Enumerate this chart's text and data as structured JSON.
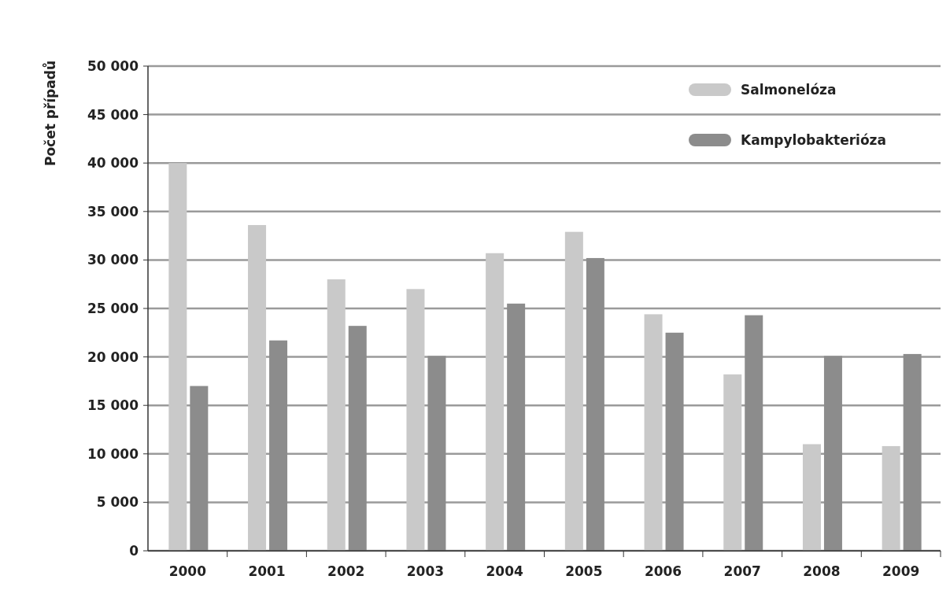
{
  "chart_data": {
    "type": "bar",
    "ylabel": "Počet případů",
    "categories": [
      "2000",
      "2001",
      "2002",
      "2003",
      "2004",
      "2005",
      "2006",
      "2007",
      "2008",
      "2009"
    ],
    "series": [
      {
        "name": "Salmonelóza",
        "color": "#c9c9c9",
        "values": [
          40000,
          33600,
          28000,
          27000,
          30700,
          32900,
          24400,
          18200,
          11000,
          10800
        ]
      },
      {
        "name": "Kampylobakterióza",
        "color": "#8c8c8c",
        "values": [
          17000,
          21700,
          23200,
          20100,
          25500,
          30200,
          22500,
          24300,
          20100,
          20300
        ]
      }
    ],
    "ylim": [
      0,
      50000
    ],
    "yticks": [
      0,
      {
        "value": 5000,
        "label": "5 000"
      },
      {
        "value": 10000,
        "label": "10 000"
      },
      {
        "value": 15000,
        "label": "15 000"
      },
      {
        "value": 20000,
        "label": "20 000"
      },
      {
        "value": 25000,
        "label": "25 000"
      },
      {
        "value": 30000,
        "label": "30 000"
      },
      {
        "value": 35000,
        "label": "35 000"
      },
      {
        "value": 40000,
        "label": "40 000"
      },
      {
        "value": 45000,
        "label": "45 000"
      },
      {
        "value": 50000,
        "label": "50 000"
      }
    ],
    "grid": "y",
    "legend": "top right"
  }
}
